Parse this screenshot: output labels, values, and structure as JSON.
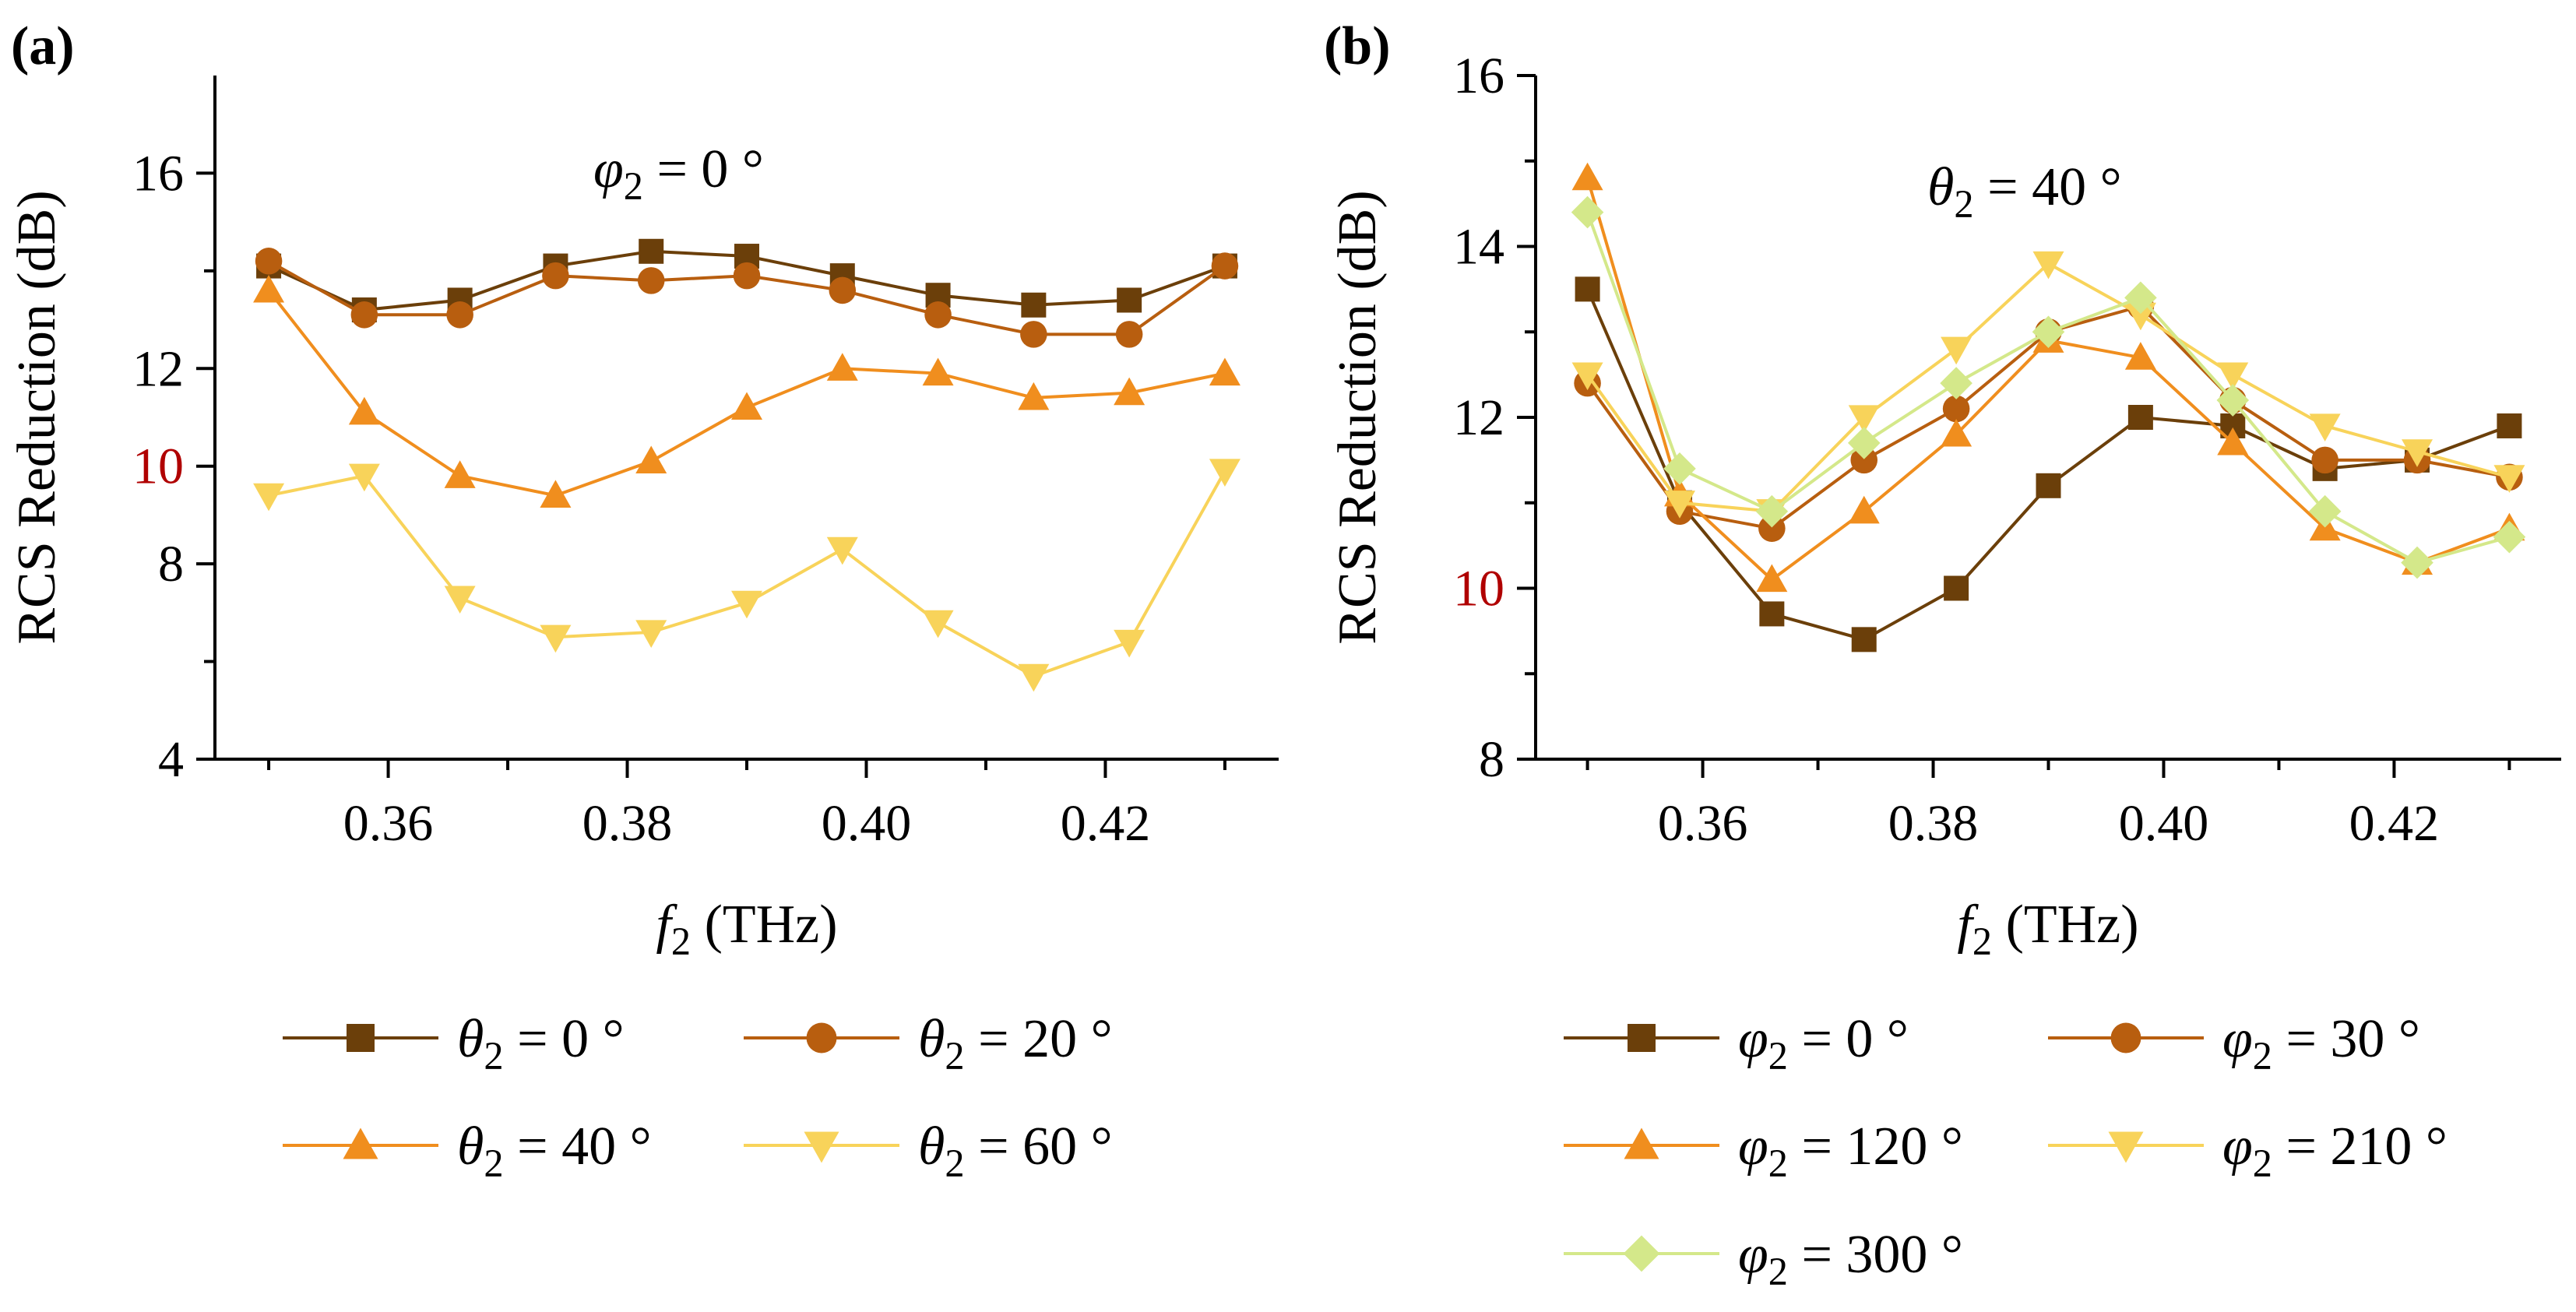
{
  "chart_data": [
    {
      "type": "line",
      "panel_label": "(a)",
      "title": "",
      "annotation": {
        "symbol": "φ",
        "sub": "2",
        "rest": " = 0 °"
      },
      "xlabel": {
        "symbol": "f",
        "sub": "2",
        "rest": " (THz)"
      },
      "ylabel": "RCS Reduction (dB)",
      "xlim": [
        0.3455,
        0.4345
      ],
      "ylim": [
        4,
        18
      ],
      "xticks": [
        0.36,
        0.38,
        0.4,
        0.42
      ],
      "xtick_labels": [
        "0.36",
        "0.38",
        "0.40",
        "0.42"
      ],
      "xminor": [
        0.35,
        0.37,
        0.39,
        0.41,
        0.43
      ],
      "yticks": [
        4,
        8,
        10,
        12,
        16
      ],
      "ytick_labels": [
        "4",
        "8",
        "10",
        "12",
        "16"
      ],
      "ytick_colors": [
        "#000000",
        "#000000",
        "#b00000",
        "#000000",
        "#000000"
      ],
      "yminor": [
        6,
        14
      ],
      "grid": false,
      "legend_position": "bottom",
      "x": [
        0.35,
        0.358,
        0.366,
        0.374,
        0.382,
        0.39,
        0.398,
        0.406,
        0.414,
        0.422,
        0.43
      ],
      "series": [
        {
          "name": "θ2 = 0 °",
          "symbol": "θ",
          "sub": "2",
          "rest": " = 0 °",
          "marker": "square",
          "color": "#6b3f0a",
          "values": [
            14.1,
            13.2,
            13.4,
            14.1,
            14.4,
            14.3,
            13.9,
            13.5,
            13.3,
            13.4,
            14.1
          ]
        },
        {
          "name": "θ2 = 20 °",
          "symbol": "θ",
          "sub": "2",
          "rest": " = 20 °",
          "marker": "circle",
          "color": "#b85e0f",
          "values": [
            14.2,
            13.1,
            13.1,
            13.9,
            13.8,
            13.9,
            13.6,
            13.1,
            12.7,
            12.7,
            14.1
          ]
        },
        {
          "name": "θ2 = 40 °",
          "symbol": "θ",
          "sub": "2",
          "rest": " = 40 °",
          "marker": "triangle-up",
          "color": "#f08e1e",
          "values": [
            13.6,
            11.1,
            9.8,
            9.4,
            10.1,
            11.2,
            12.0,
            11.9,
            11.4,
            11.5,
            11.9
          ]
        },
        {
          "name": "θ2 = 60 °",
          "symbol": "θ",
          "sub": "2",
          "rest": " = 60 °",
          "marker": "triangle-down",
          "color": "#f8d35a",
          "values": [
            9.4,
            9.8,
            7.3,
            6.5,
            6.6,
            7.2,
            8.3,
            6.8,
            5.7,
            6.4,
            9.9
          ]
        }
      ]
    },
    {
      "type": "line",
      "panel_label": "(b)",
      "title": "",
      "annotation": {
        "symbol": "θ",
        "sub": "2",
        "rest": " = 40 °"
      },
      "xlabel": {
        "symbol": "f",
        "sub": "2",
        "rest": " (THz)"
      },
      "ylabel": "RCS Reduction (dB)",
      "xlim": [
        0.3455,
        0.4345
      ],
      "ylim": [
        8,
        16
      ],
      "xticks": [
        0.36,
        0.38,
        0.4,
        0.42
      ],
      "xtick_labels": [
        "0.36",
        "0.38",
        "0.40",
        "0.42"
      ],
      "xminor": [
        0.35,
        0.37,
        0.39,
        0.41,
        0.43
      ],
      "yticks": [
        8,
        10,
        12,
        14,
        16
      ],
      "ytick_labels": [
        "8",
        "10",
        "12",
        "14",
        "16"
      ],
      "ytick_colors": [
        "#000000",
        "#b00000",
        "#000000",
        "#000000",
        "#000000"
      ],
      "yminor": [
        9,
        11,
        13,
        15
      ],
      "grid": false,
      "legend_position": "bottom",
      "x": [
        0.35,
        0.358,
        0.366,
        0.374,
        0.382,
        0.39,
        0.398,
        0.406,
        0.414,
        0.422,
        0.43
      ],
      "series": [
        {
          "name": "φ2 = 0 °",
          "symbol": "φ",
          "sub": "2",
          "rest": " = 0 °",
          "marker": "square",
          "color": "#6b3f0a",
          "values": [
            13.5,
            11.0,
            9.7,
            9.4,
            10.0,
            11.2,
            12.0,
            11.9,
            11.4,
            11.5,
            11.9
          ]
        },
        {
          "name": "φ2 = 30 °",
          "symbol": "φ",
          "sub": "2",
          "rest": " = 30 °",
          "marker": "circle",
          "color": "#b85e0f",
          "values": [
            12.4,
            10.9,
            10.7,
            11.5,
            12.1,
            13.0,
            13.3,
            12.2,
            11.5,
            11.5,
            11.3
          ]
        },
        {
          "name": "φ2 = 120 °",
          "symbol": "φ",
          "sub": "2",
          "rest": " = 120 °",
          "marker": "triangle-up",
          "color": "#f08e1e",
          "values": [
            14.8,
            11.1,
            10.1,
            10.9,
            11.8,
            12.9,
            12.7,
            11.7,
            10.7,
            10.3,
            10.7
          ]
        },
        {
          "name": "φ2 = 210 °",
          "symbol": "φ",
          "sub": "2",
          "rest": " = 210 °",
          "marker": "triangle-down",
          "color": "#f8d35a",
          "values": [
            12.5,
            11.0,
            10.9,
            12.0,
            12.8,
            13.8,
            13.2,
            12.5,
            11.9,
            11.6,
            11.3
          ]
        },
        {
          "name": "φ2 = 300 °",
          "symbol": "φ",
          "sub": "2",
          "rest": " = 300 °",
          "marker": "diamond",
          "color": "#d4e88a",
          "values": [
            14.4,
            11.4,
            10.9,
            11.7,
            12.4,
            13.0,
            13.4,
            12.2,
            10.9,
            10.3,
            10.6
          ]
        }
      ]
    }
  ]
}
